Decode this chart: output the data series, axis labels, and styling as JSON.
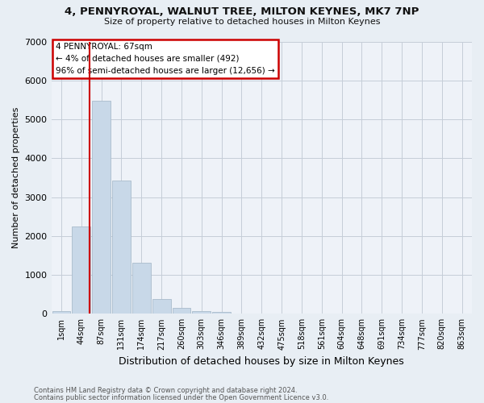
{
  "title": "4, PENNYROYAL, WALNUT TREE, MILTON KEYNES, MK7 7NP",
  "subtitle": "Size of property relative to detached houses in Milton Keynes",
  "xlabel": "Distribution of detached houses by size in Milton Keynes",
  "ylabel": "Number of detached properties",
  "footer1": "Contains HM Land Registry data © Crown copyright and database right 2024.",
  "footer2": "Contains public sector information licensed under the Open Government Licence v3.0.",
  "categories": [
    "1sqm",
    "44sqm",
    "87sqm",
    "131sqm",
    "174sqm",
    "217sqm",
    "260sqm",
    "303sqm",
    "346sqm",
    "389sqm",
    "432sqm",
    "475sqm",
    "518sqm",
    "561sqm",
    "604sqm",
    "648sqm",
    "691sqm",
    "734sqm",
    "777sqm",
    "820sqm",
    "863sqm"
  ],
  "values": [
    70,
    2250,
    5480,
    3420,
    1310,
    370,
    160,
    70,
    50,
    0,
    0,
    0,
    0,
    0,
    0,
    0,
    0,
    0,
    0,
    0,
    0
  ],
  "bar_color": "#c8d8e8",
  "bar_edge_color": "#aabccc",
  "property_line_x": 1.42,
  "property_line_color": "#cc0000",
  "annotation_text": "4 PENNYROYAL: 67sqm\n← 4% of detached houses are smaller (492)\n96% of semi-detached houses are larger (12,656) →",
  "annotation_box_color": "#ffffff",
  "annotation_box_edge": "#cc0000",
  "ylim": [
    0,
    7000
  ],
  "yticks": [
    0,
    1000,
    2000,
    3000,
    4000,
    5000,
    6000,
    7000
  ],
  "background_color": "#e8eef4",
  "plot_background": "#eef2f8",
  "grid_color": "#c5cdd8"
}
